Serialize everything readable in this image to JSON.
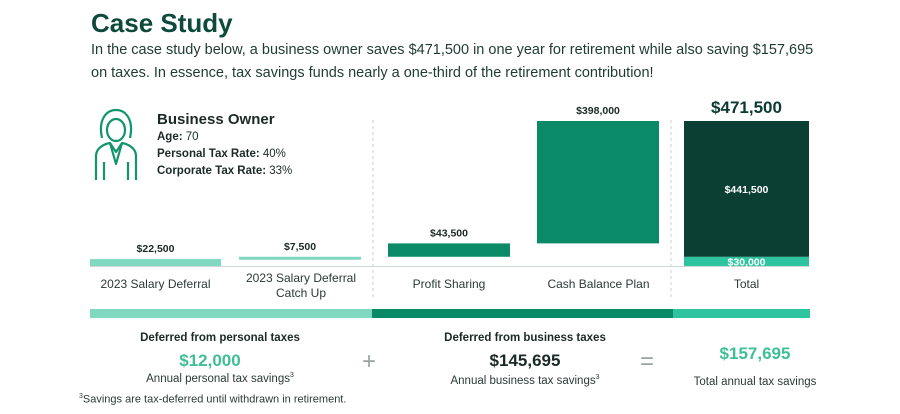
{
  "title": "Case Study",
  "intro": "In the case study below, a business owner saves $471,500 in one year for retirement while also saving $157,695 on taxes. In essence, tax savings funds nearly a one-third of the retirement contribution!",
  "owner": {
    "icon": "businesswoman-icon",
    "name": "Business Owner",
    "age_label": "Age:",
    "age": "70",
    "personal_label": "Personal Tax Rate:",
    "personal": "40%",
    "corporate_label": "Corporate Tax Rate:",
    "corporate": "33%"
  },
  "chart_data": {
    "type": "bar",
    "subtype": "waterfall",
    "categories": [
      "2023 Salary Deferral",
      "2023 Salary Deferral Catch Up",
      "Profit Sharing",
      "Cash Balance Plan",
      "Total"
    ],
    "values": [
      22500,
      7500,
      43500,
      398000,
      471500
    ],
    "labels": [
      "$22,500",
      "$7,500",
      "$43,500",
      "$398,000",
      "$471,500"
    ],
    "total_breakdown": [
      {
        "value": 30000,
        "label": "$30,000"
      },
      {
        "value": 441500,
        "label": "$441,500"
      }
    ],
    "colors": {
      "light": "#7fd8bf",
      "mid": "#0b8a67",
      "dark": "#0b3f33",
      "total_base": "#2ec4a0"
    }
  },
  "summary": {
    "personal": {
      "heading": "Deferred from personal taxes",
      "value": "$12,000",
      "sub": "Annual personal tax savings",
      "sup": "3"
    },
    "plus": "+",
    "business": {
      "heading": "Deferred from business taxes",
      "value": "$145,695",
      "sub": "Annual business tax savings",
      "sup": "3"
    },
    "equals": "=",
    "total": {
      "value": "$157,695",
      "sub": "Total annual tax savings"
    }
  },
  "footnote_sup": "3",
  "footnote": "Savings are tax-deferred until withdrawn in retirement."
}
